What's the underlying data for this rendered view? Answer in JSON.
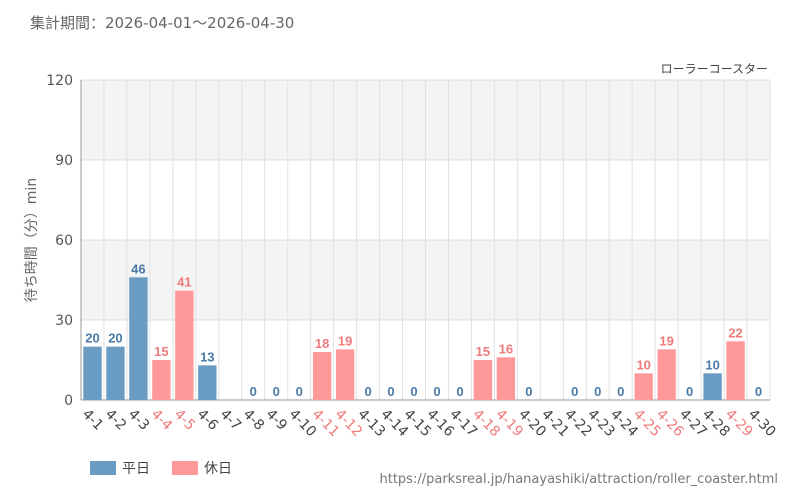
{
  "header": {
    "period_label": "集計期間：2026-04-01～2026-04-30"
  },
  "legend": {
    "weekday_label": "平日",
    "holiday_label": "休日"
  },
  "footer": {
    "source_url": "https://parksreal.jp/hanayashiki/attraction/roller_coaster.html"
  },
  "colors": {
    "weekday": "#6a9bc3",
    "holiday": "#ff9999",
    "weekday_text": "#4a7aa8",
    "holiday_text": "#f07a7a",
    "grid_band": "#f4f4f4"
  },
  "chart_data": {
    "type": "bar",
    "attraction_name": "ローラーコースター",
    "ylabel": "待ち時間（分）min",
    "xlabel": "",
    "ylim": [
      0,
      120
    ],
    "yticks": [
      0,
      30,
      60,
      90,
      120
    ],
    "grid": true,
    "categories": [
      "4-1",
      "4-2",
      "4-3",
      "4-4",
      "4-5",
      "4-6",
      "4-7",
      "4-8",
      "4-9",
      "4-10",
      "4-11",
      "4-12",
      "4-13",
      "4-14",
      "4-15",
      "4-16",
      "4-17",
      "4-18",
      "4-19",
      "4-20",
      "4-21",
      "4-22",
      "4-23",
      "4-24",
      "4-25",
      "4-26",
      "4-27",
      "4-28",
      "4-29",
      "4-30"
    ],
    "day_types": [
      "weekday",
      "weekday",
      "weekday",
      "holiday",
      "holiday",
      "weekday",
      "weekday",
      "weekday",
      "weekday",
      "weekday",
      "holiday",
      "holiday",
      "weekday",
      "weekday",
      "weekday",
      "weekday",
      "weekday",
      "holiday",
      "holiday",
      "weekday",
      "weekday",
      "weekday",
      "weekday",
      "weekday",
      "holiday",
      "holiday",
      "weekday",
      "weekday",
      "holiday",
      "weekday"
    ],
    "values": [
      20,
      20,
      46,
      15,
      41,
      13,
      null,
      0,
      0,
      0,
      18,
      19,
      0,
      0,
      0,
      0,
      0,
      15,
      16,
      0,
      null,
      0,
      0,
      0,
      10,
      19,
      0,
      10,
      22,
      0
    ],
    "series": [
      {
        "name": "平日",
        "type": "weekday"
      },
      {
        "name": "休日",
        "type": "holiday"
      }
    ]
  }
}
